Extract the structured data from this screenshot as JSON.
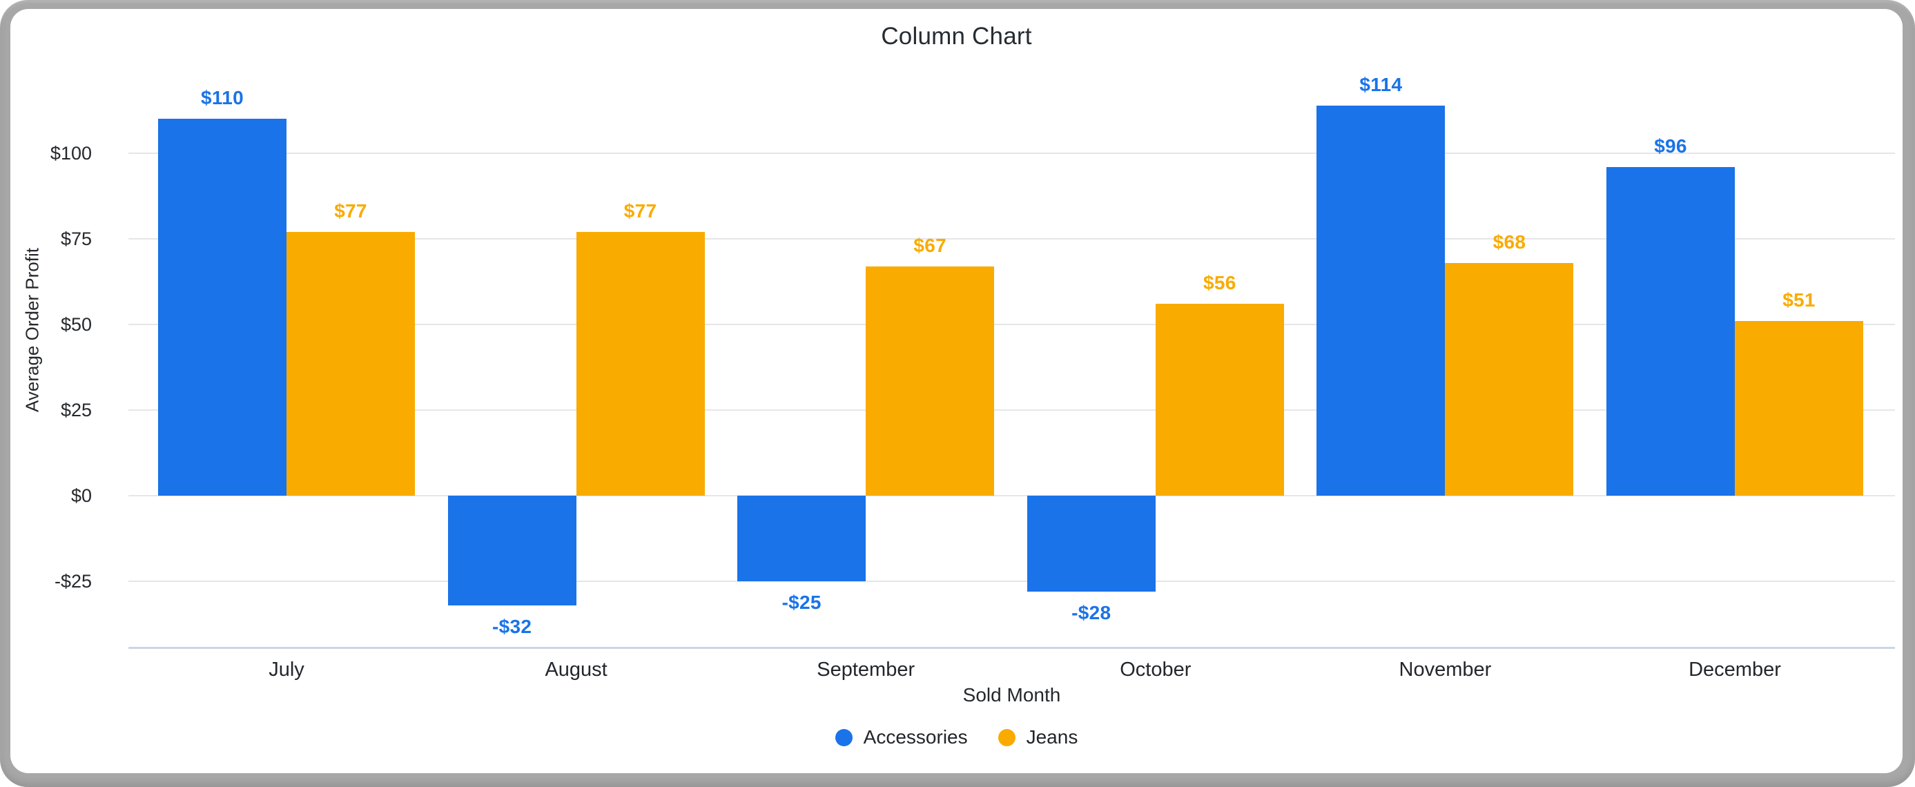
{
  "chart_data": {
    "type": "bar",
    "title": "Column Chart",
    "xlabel": "Sold Month",
    "ylabel": "Average Order Profit",
    "categories": [
      "July",
      "August",
      "September",
      "October",
      "November",
      "December"
    ],
    "series": [
      {
        "name": "Accessories",
        "color": "#1a73e8",
        "values": [
          110,
          -32,
          -25,
          -28,
          114,
          96
        ],
        "labels": [
          "$110",
          "-$32",
          "-$25",
          "-$28",
          "$114",
          "$96"
        ]
      },
      {
        "name": "Jeans",
        "color": "#f9ab00",
        "values": [
          77,
          77,
          67,
          56,
          68,
          51
        ],
        "labels": [
          "$77",
          "$77",
          "$67",
          "$56",
          "$68",
          "$51"
        ]
      }
    ],
    "y_ticks": [
      {
        "value": 100,
        "label": "$100"
      },
      {
        "value": 75,
        "label": "$75"
      },
      {
        "value": 50,
        "label": "$50"
      },
      {
        "value": 25,
        "label": "$25"
      },
      {
        "value": 0,
        "label": "$0"
      },
      {
        "value": -25,
        "label": "-$25"
      }
    ],
    "ylim": [
      -44,
      124
    ],
    "grid": true,
    "legend_position": "bottom",
    "colors": {
      "accessories": "#1a73e8",
      "jeans": "#f9ab00",
      "gridline": "#e5e6e8",
      "axis_baseline": "#ccd6e5",
      "frame": "#a7a7a7",
      "text": "#25282c"
    }
  }
}
